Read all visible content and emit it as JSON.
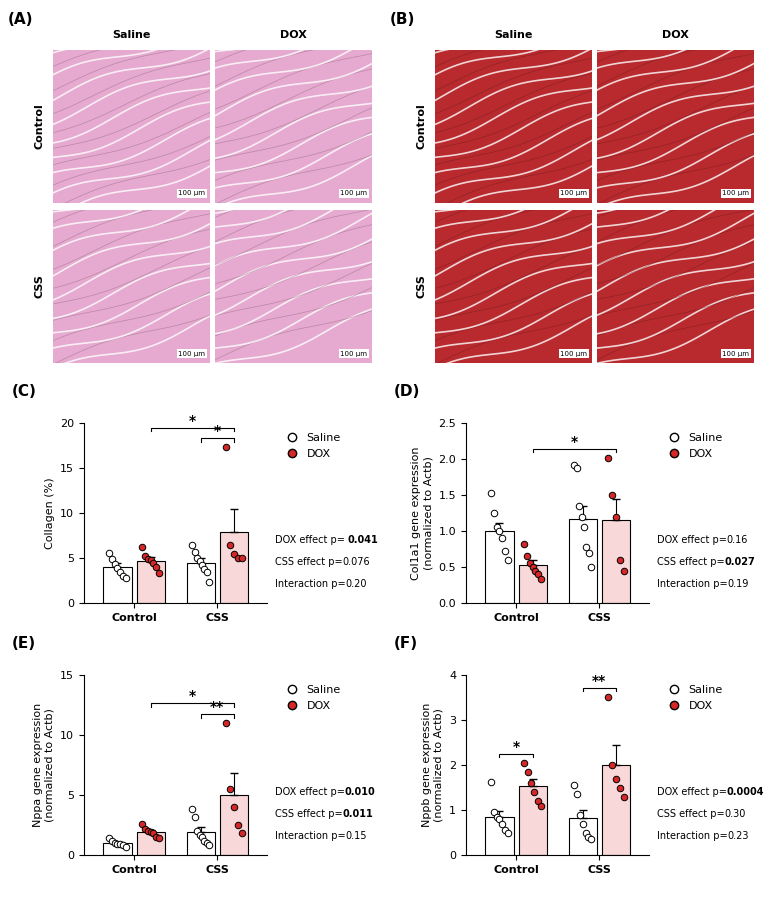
{
  "images": [
    {
      "label": "(A)",
      "rows": [
        "Control",
        "CSS"
      ],
      "cols": [
        "Saline",
        "DOX"
      ],
      "scale_bar": "100 µm",
      "color": "#e6a9cf"
    },
    {
      "label": "(B)",
      "rows": [
        "Control",
        "CSS"
      ],
      "cols": [
        "Saline",
        "DOX"
      ],
      "scale_bar": "100 µm",
      "color": "#b82a2e"
    }
  ],
  "chart_data": [
    {
      "type": "bar",
      "label": "(C)",
      "ylabel": "Collagen (%)",
      "categories": [
        "Control",
        "CSS"
      ],
      "ylim": [
        0,
        20
      ],
      "yticks": [
        0,
        5,
        10,
        15,
        20
      ],
      "legend": "right",
      "series": [
        {
          "name": "Saline",
          "color": "#ffffff",
          "values": [
            4.0,
            4.5
          ],
          "error": [
            0.4,
            0.5
          ],
          "points": [
            [
              5.6,
              4.9,
              4.3,
              3.9,
              3.5,
              3.0,
              2.8
            ],
            [
              6.4,
              5.7,
              5.0,
              4.7,
              4.2,
              3.8,
              3.5,
              2.3
            ]
          ]
        },
        {
          "name": "DOX",
          "color": "#d62728",
          "values": [
            4.7,
            7.9
          ],
          "error": [
            0.4,
            2.5
          ],
          "points": [
            [
              6.2,
              5.2,
              4.9,
              4.8,
              4.4,
              4.0,
              3.3
            ],
            [
              17.3,
              6.5,
              5.5,
              5.0,
              5.0
            ]
          ]
        }
      ],
      "brackets": [
        {
          "from": [
            "CSS",
            "Saline"
          ],
          "to": [
            "CSS",
            "DOX"
          ],
          "label": "*"
        },
        {
          "from": [
            "Control",
            "DOX"
          ],
          "to": [
            "CSS",
            "DOX"
          ],
          "label": "*"
        }
      ],
      "stats": [
        {
          "prefix": "DOX effect p= ",
          "p": "0.041",
          "bold": true
        },
        {
          "prefix": "CSS effect p=",
          "p": "0.076",
          "bold": false
        },
        {
          "prefix": "Interaction p=",
          "p": "0.20",
          "bold": false
        }
      ]
    },
    {
      "type": "bar",
      "label": "(D)",
      "ylabel": "Col1a1 gene expression\n(normalized to Actb)",
      "categories": [
        "Control",
        "CSS"
      ],
      "ylim": [
        0,
        2.5
      ],
      "yticks": [
        {
          "value": 0,
          "label": "0.0"
        },
        0.5,
        {
          "value": 1,
          "label": "1.0"
        },
        1.5,
        {
          "value": 2,
          "label": "2.0"
        },
        2.5
      ],
      "legend": "right",
      "series": [
        {
          "name": "Saline",
          "color": "#ffffff",
          "values": [
            1.0,
            1.17
          ],
          "error": [
            0.11,
            0.18
          ],
          "points": [
            [
              1.53,
              1.25,
              1.05,
              1.0,
              0.9,
              0.72,
              0.6
            ],
            [
              1.92,
              1.88,
              1.35,
              1.2,
              1.05,
              0.78,
              0.7,
              0.5
            ]
          ]
        },
        {
          "name": "DOX",
          "color": "#d62728",
          "values": [
            0.53,
            1.15
          ],
          "error": [
            0.07,
            0.3
          ],
          "points": [
            [
              0.82,
              0.65,
              0.55,
              0.5,
              0.45,
              0.4,
              0.33
            ],
            [
              2.02,
              1.5,
              1.2,
              0.6,
              0.45
            ]
          ]
        }
      ],
      "brackets": [
        {
          "from": [
            "Control",
            "DOX"
          ],
          "to": [
            "CSS",
            "DOX"
          ],
          "label": "*"
        }
      ],
      "stats": [
        {
          "prefix": "DOX effect p=",
          "p": "0.16",
          "bold": false
        },
        {
          "prefix": "CSS effect p=",
          "p": "0.027",
          "bold": true
        },
        {
          "prefix": "Interaction p=",
          "p": "0.19",
          "bold": false
        }
      ]
    },
    {
      "type": "bar",
      "label": "(E)",
      "ylabel": "Nppa gene expression\n(normalized to Actb)",
      "categories": [
        "Control",
        "CSS"
      ],
      "ylim": [
        0,
        15
      ],
      "yticks": [
        0,
        5,
        10,
        15
      ],
      "legend": "right",
      "series": [
        {
          "name": "Saline",
          "color": "#ffffff",
          "values": [
            1.0,
            1.9
          ],
          "error": [
            0.1,
            0.4
          ],
          "points": [
            [
              1.4,
              1.2,
              1.0,
              0.9,
              0.9,
              0.8,
              0.7
            ],
            [
              3.8,
              3.2,
              2.0,
              1.7,
              1.5,
              1.2,
              1.0,
              0.8
            ]
          ]
        },
        {
          "name": "DOX",
          "color": "#d62728",
          "values": [
            1.9,
            5.0
          ],
          "error": [
            0.2,
            1.8
          ],
          "points": [
            [
              2.6,
              2.2,
              2.0,
              1.9,
              1.8,
              1.5,
              1.4
            ],
            [
              11.0,
              5.5,
              4.0,
              2.5,
              1.8
            ]
          ]
        }
      ],
      "brackets": [
        {
          "from": [
            "CSS",
            "Saline"
          ],
          "to": [
            "CSS",
            "DOX"
          ],
          "label": "**"
        },
        {
          "from": [
            "Control",
            "DOX"
          ],
          "to": [
            "CSS",
            "DOX"
          ],
          "label": "*"
        }
      ],
      "stats": [
        {
          "prefix": "DOX effect p=",
          "p": "0.010",
          "bold": true
        },
        {
          "prefix": "CSS effect p=",
          "p": "0.011",
          "bold": true
        },
        {
          "prefix": "Interaction p=",
          "p": "0.15",
          "bold": false
        }
      ]
    },
    {
      "type": "bar",
      "label": "(F)",
      "ylabel": "Nppb gene expression\n(normalized to Actb)",
      "categories": [
        "Control",
        "CSS"
      ],
      "ylim": [
        0,
        4
      ],
      "yticks": [
        0,
        1,
        2,
        3,
        4
      ],
      "legend": "right",
      "series": [
        {
          "name": "Saline",
          "color": "#ffffff",
          "values": [
            0.85,
            0.82
          ],
          "error": [
            0.12,
            0.17
          ],
          "points": [
            [
              1.62,
              0.95,
              0.85,
              0.8,
              0.7,
              0.55,
              0.5
            ],
            [
              1.55,
              1.35,
              0.9,
              0.7,
              0.5,
              0.4,
              0.35
            ]
          ]
        },
        {
          "name": "DOX",
          "color": "#d62728",
          "values": [
            1.53,
            2.0
          ],
          "error": [
            0.15,
            0.45
          ],
          "points": [
            [
              2.05,
              1.85,
              1.6,
              1.4,
              1.2,
              1.1
            ],
            [
              3.52,
              2.0,
              1.7,
              1.5,
              1.3
            ]
          ]
        }
      ],
      "brackets": [
        {
          "from": [
            "Control",
            "Saline"
          ],
          "to": [
            "Control",
            "DOX"
          ],
          "label": "*"
        },
        {
          "from": [
            "CSS",
            "Saline"
          ],
          "to": [
            "CSS",
            "DOX"
          ],
          "label": "**"
        }
      ],
      "stats": [
        {
          "prefix": "DOX effect p=",
          "p": "0.0004",
          "bold": true
        },
        {
          "prefix": "CSS effect p=",
          "p": "0.30",
          "bold": false
        },
        {
          "prefix": "Interaction p=",
          "p": "0.23",
          "bold": false
        }
      ]
    }
  ]
}
